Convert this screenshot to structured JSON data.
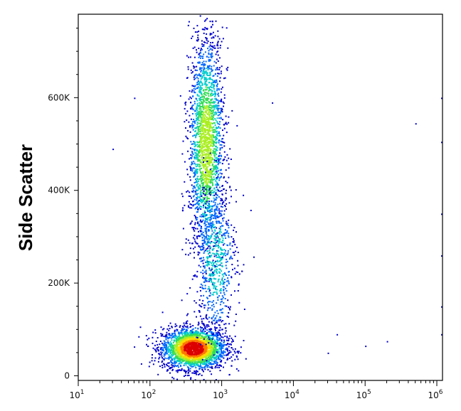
{
  "chart_data": {
    "type": "scatter",
    "title": "",
    "xlabel": "",
    "ylabel": "Side Scatter",
    "x_scale": "log",
    "xlim": [
      10,
      1200000
    ],
    "ylim": [
      -10000,
      780000
    ],
    "x_ticks": [
      {
        "value": 10,
        "base": "10",
        "exp": "1"
      },
      {
        "value": 100,
        "base": "10",
        "exp": "2"
      },
      {
        "value": 1000,
        "base": "10",
        "exp": "3"
      },
      {
        "value": 10000,
        "base": "10",
        "exp": "4"
      },
      {
        "value": 100000,
        "base": "10",
        "exp": "5"
      },
      {
        "value": 1000000,
        "base": "10",
        "exp": "6"
      }
    ],
    "y_ticks": [
      {
        "value": 0,
        "label": "0"
      },
      {
        "value": 200000,
        "label": "200K"
      },
      {
        "value": 400000,
        "label": "400K"
      },
      {
        "value": 600000,
        "label": "600K"
      }
    ],
    "grid": false,
    "legend": "none",
    "colormap": [
      "#0000cc",
      "#0066ff",
      "#00cccc",
      "#33dd55",
      "#aaee22",
      "#ffdd00",
      "#ff7700",
      "#dd0000"
    ],
    "populations": [
      {
        "center_x": 400,
        "center_y": 60000,
        "spread_log10_x": 0.22,
        "spread_y": 22000,
        "density": "high"
      },
      {
        "center_x": 600,
        "center_y": 500000,
        "spread_log10_x": 0.12,
        "spread_y": 120000,
        "density": "medium"
      },
      {
        "center_x": 800,
        "center_y": 250000,
        "spread_log10_x": 0.15,
        "spread_y": 90000,
        "density": "low"
      }
    ],
    "points": [
      [
        60,
        600000
      ],
      [
        30,
        490000
      ],
      [
        5000,
        590000
      ],
      [
        500000,
        545000
      ],
      [
        30000,
        50000
      ],
      [
        100000,
        65000
      ],
      [
        200000,
        75000
      ],
      [
        40000,
        90000
      ],
      [
        1150000,
        600000
      ],
      [
        1150000,
        505000
      ],
      [
        1150000,
        350000
      ],
      [
        1150000,
        260000
      ],
      [
        1150000,
        150000
      ],
      [
        1150000,
        90000
      ]
    ]
  }
}
